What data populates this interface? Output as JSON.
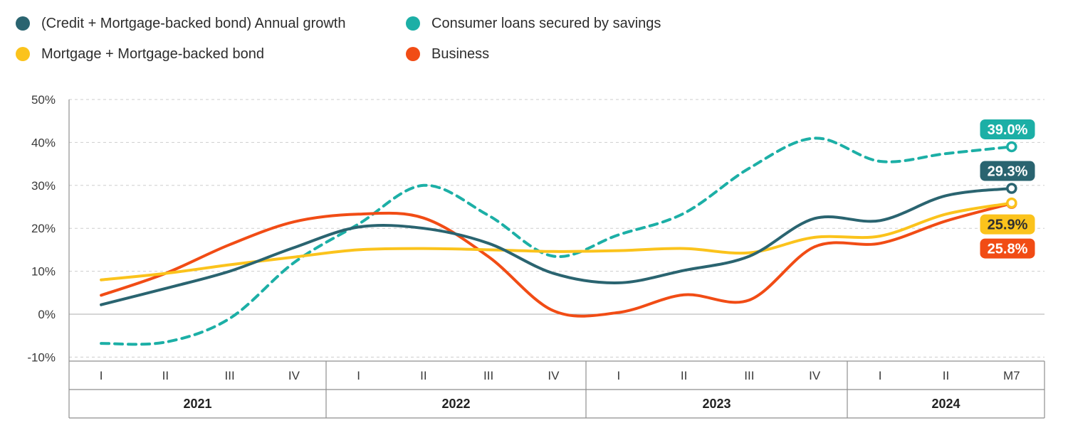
{
  "legend": {
    "note": "built from chart_data.series in order credit, consumer, mortgage, business"
  },
  "chart_data": {
    "type": "line",
    "title": "",
    "xlabel": "",
    "ylabel": "",
    "ylim": [
      -10,
      50
    ],
    "grid": "horizontal-dashed",
    "legend_position": "top-left",
    "y_ticks": [
      {
        "label": "50%",
        "value": 50
      },
      {
        "label": "40%",
        "value": 40
      },
      {
        "label": "30%",
        "value": 30
      },
      {
        "label": "20%",
        "value": 20
      },
      {
        "label": "10%",
        "value": 10
      },
      {
        "label": "0%",
        "value": 0
      },
      {
        "label": "-10%",
        "value": -10
      }
    ],
    "x_axis": {
      "years": [
        {
          "label": "2021",
          "quarters": [
            "I",
            "II",
            "III",
            "IV"
          ]
        },
        {
          "label": "2022",
          "quarters": [
            "I",
            "II",
            "III",
            "IV"
          ]
        },
        {
          "label": "2023",
          "quarters": [
            "I",
            "II",
            "III",
            "IV"
          ]
        },
        {
          "label": "2024",
          "quarters": [
            "I",
            "II",
            "M7"
          ]
        }
      ]
    },
    "categories": [
      "2021-I",
      "2021-II",
      "2021-III",
      "2021-IV",
      "2022-I",
      "2022-II",
      "2022-III",
      "2022-IV",
      "2023-I",
      "2023-II",
      "2023-III",
      "2023-IV",
      "2024-I",
      "2024-II",
      "2024-M7"
    ],
    "series": [
      {
        "name": "(Credit + Mortgage-backed bond) Annual growth",
        "color": "#2A6470",
        "dashed": false,
        "end_label": "39.0%",
        "end_label_is": "no",
        "label_position": "above",
        "label_text_color": "#FFFFFF",
        "badge": "29.3%",
        "values": [
          2.2,
          6.0,
          10.0,
          15.5,
          20.3,
          20.0,
          16.5,
          9.5,
          7.3,
          10.2,
          13.5,
          22.3,
          21.8,
          27.6,
          29.3
        ]
      },
      {
        "name": "Consumer loans secured by savings",
        "color": "#1CAFA6",
        "dashed": true,
        "label_position": "above",
        "label_text_color": "#FFFFFF",
        "badge": "39.0%",
        "values": [
          -6.8,
          -6.5,
          -1.0,
          12.0,
          21.0,
          30.0,
          23.0,
          13.5,
          18.5,
          23.5,
          34.0,
          41.0,
          35.6,
          37.4,
          39.0
        ]
      },
      {
        "name": "Mortgage + Mortgage-backed bond",
        "color": "#FBC31C",
        "dashed": false,
        "label_position": "below",
        "label_text_color": "#2F2F2F",
        "badge": "25.9%",
        "values": [
          8.0,
          9.5,
          11.5,
          13.3,
          15.0,
          15.3,
          15.0,
          14.6,
          14.8,
          15.3,
          14.3,
          17.9,
          18.2,
          23.3,
          25.9
        ]
      },
      {
        "name": "Business",
        "color": "#F14C15",
        "dashed": false,
        "label_position": "below",
        "label_text_color": "#FFFFFF",
        "badge": "25.8%",
        "values": [
          4.4,
          9.5,
          16.2,
          21.5,
          23.3,
          22.4,
          13.4,
          0.8,
          0.4,
          4.5,
          3.3,
          15.7,
          16.5,
          21.7,
          25.8
        ]
      }
    ]
  }
}
